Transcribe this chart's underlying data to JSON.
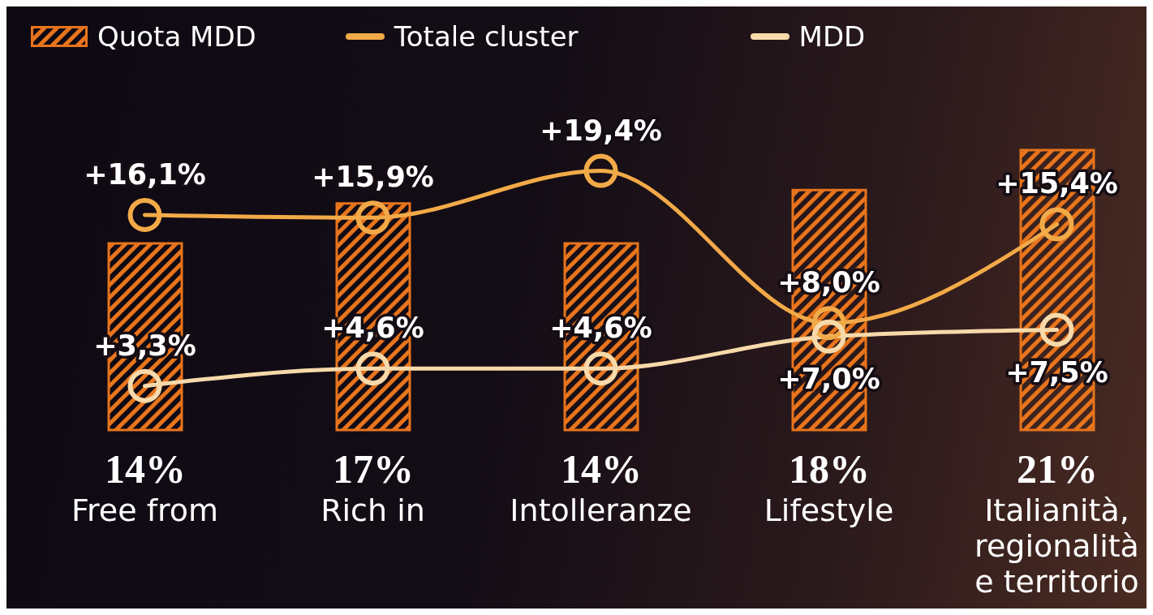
{
  "chart_data": {
    "type": "bar",
    "categories": [
      "Free from",
      "Rich in",
      "Intolleranze",
      "Lifestyle",
      "Italianità, regionalità e territorio"
    ],
    "series": [
      {
        "name": "Quota MDD",
        "color": "#e8741c",
        "values": [
          14,
          17,
          14,
          18,
          21
        ],
        "value_labels": [
          "14%",
          "17%",
          "14%",
          "18%",
          "21%"
        ]
      },
      {
        "name": "Totale cluster",
        "type": "line",
        "axis": "y2",
        "color": "#f2aa48",
        "values": [
          16.1,
          15.9,
          19.4,
          8.0,
          15.4
        ],
        "value_labels": [
          "+16,1%",
          "+15,9%",
          "+19,4%",
          "+8,0%",
          "+15,4%"
        ]
      },
      {
        "name": "MDD",
        "type": "line",
        "axis": "y2",
        "color": "#f7d9aa",
        "values": [
          3.3,
          4.6,
          4.6,
          7.0,
          7.5
        ],
        "value_labels": [
          "+3,3%",
          "+4,6%",
          "+4,6%",
          "+7,0%",
          "+7,5%"
        ]
      }
    ],
    "legend": "top left",
    "marker": "circle",
    "tick_labels": "x"
  }
}
